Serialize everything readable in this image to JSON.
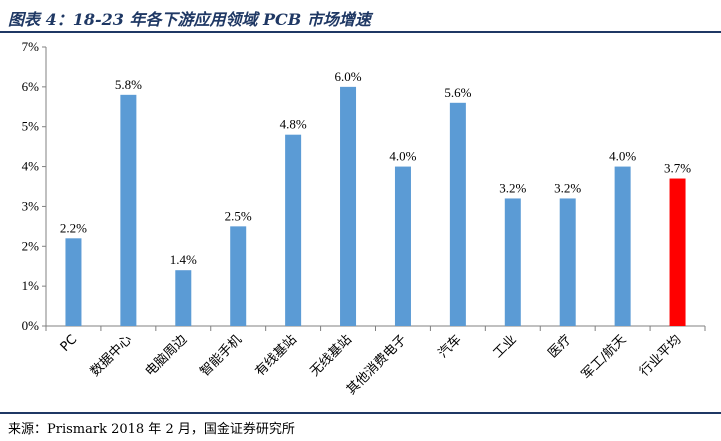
{
  "title": "图表 4：18-23 年各下游应用领域 PCB 市场增速",
  "source": "来源：Prismark 2018 年 2 月，国金证券研究所",
  "chart_data": {
    "type": "bar",
    "title": "图表 4：18-23 年各下游应用领域 PCB 市场增速",
    "categories": [
      "PC",
      "数据中心",
      "电脑周边",
      "智能手机",
      "有线基站",
      "无线基站",
      "其他消费电子",
      "汽车",
      "工业",
      "医疗",
      "军工/航天",
      "行业平均"
    ],
    "values": [
      2.2,
      5.8,
      1.4,
      2.5,
      4.8,
      6.0,
      4.0,
      5.6,
      3.2,
      3.2,
      4.0,
      3.7
    ],
    "data_labels": [
      "2.2%",
      "5.8%",
      "1.4%",
      "2.5%",
      "4.8%",
      "6.0%",
      "4.0%",
      "5.6%",
      "3.2%",
      "3.2%",
      "4.0%",
      "3.7%"
    ],
    "yticks": [
      0,
      1,
      2,
      3,
      4,
      5,
      6,
      7
    ],
    "ytick_labels": [
      "0%",
      "1%",
      "2%",
      "3%",
      "4%",
      "5%",
      "6%",
      "7%"
    ],
    "ylim": [
      0,
      7
    ],
    "xlabel": "",
    "ylabel": "",
    "grid": false,
    "bar_color": "#5b9bd5",
    "highlight_color": "#ff0000",
    "highlight_index": 11
  }
}
